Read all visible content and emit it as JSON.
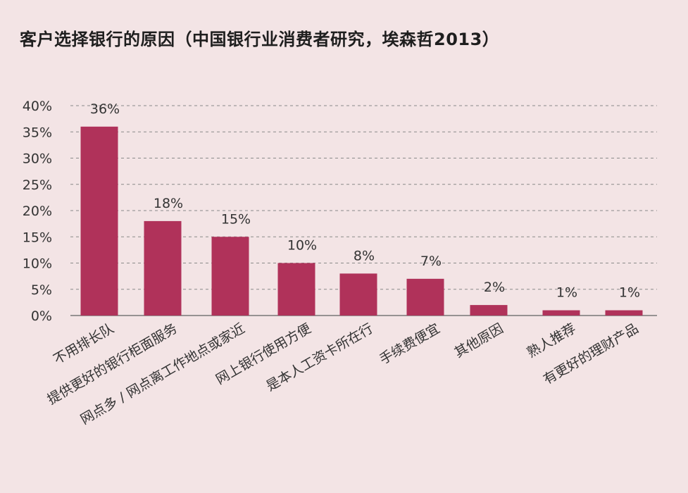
{
  "chart_data": {
    "type": "bar",
    "title": "客户选择银行的原因（中国银行业消费者研究，埃森哲2013）",
    "categories": [
      "不用排长队",
      "提供更好的银行柜面服务",
      "网点多 / 网点离工作地点或家近",
      "网上银行使用方便",
      "是本人工资卡所在行",
      "手续费便宜",
      "其他原因",
      "熟人推荐",
      "有更好的理财产品"
    ],
    "values": [
      36,
      18,
      15,
      10,
      8,
      7,
      2,
      1,
      1
    ],
    "value_labels": [
      "36%",
      "18%",
      "15%",
      "10%",
      "8%",
      "7%",
      "2%",
      "1%",
      "1%"
    ],
    "yticks": [
      "0%",
      "5%",
      "10%",
      "15%",
      "20%",
      "25%",
      "30%",
      "35%",
      "40%"
    ],
    "ylim": [
      0,
      40
    ],
    "xlabel": "",
    "ylabel": "",
    "grid": true,
    "bar_color": "#b0325a",
    "background": "#f3e4e5"
  }
}
